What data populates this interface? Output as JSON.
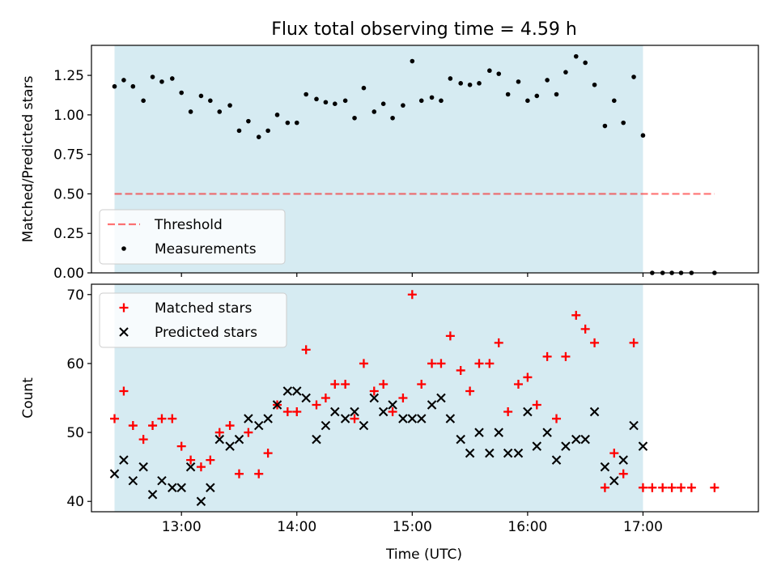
{
  "figure": {
    "title": "Flux total observing time = 4.59 h",
    "xlabel": "Time (UTC)",
    "xticks": [
      {
        "t": 13.0,
        "label": "13:00"
      },
      {
        "t": 14.0,
        "label": "14:00"
      },
      {
        "t": 15.0,
        "label": "15:00"
      },
      {
        "t": 16.0,
        "label": "16:00"
      },
      {
        "t": 17.0,
        "label": "17:00"
      }
    ],
    "colors": {
      "shade": "#add8e6",
      "threshold": "#ff0000",
      "measurements": "#000000",
      "matched": "#ff0000",
      "predicted": "#000000"
    }
  },
  "chart_data": [
    {
      "type": "scatter",
      "ylabel": "Matched/Predicted stars",
      "xlim": [
        12.22,
        18.0
      ],
      "ylim": [
        0,
        1.44
      ],
      "yticks": [
        "0.00",
        "0.25",
        "0.50",
        "0.75",
        "1.00",
        "1.25"
      ],
      "shaded_span": [
        12.42,
        17.0
      ],
      "threshold": {
        "name": "Threshold",
        "value": 0.5,
        "x_range": [
          12.42,
          17.62
        ]
      },
      "legend": [
        "Threshold",
        "Measurements"
      ],
      "legend_position": "lower left",
      "series": [
        {
          "name": "Measurements",
          "x": [
            12.42,
            12.5,
            12.58,
            12.67,
            12.75,
            12.83,
            12.92,
            13.0,
            13.08,
            13.17,
            13.25,
            13.33,
            13.42,
            13.5,
            13.58,
            13.67,
            13.75,
            13.83,
            13.92,
            14.0,
            14.08,
            14.17,
            14.25,
            14.33,
            14.42,
            14.5,
            14.58,
            14.67,
            14.75,
            14.83,
            14.92,
            15.0,
            15.08,
            15.17,
            15.25,
            15.33,
            15.42,
            15.5,
            15.58,
            15.67,
            15.75,
            15.83,
            15.92,
            16.0,
            16.08,
            16.17,
            16.25,
            16.33,
            16.42,
            16.5,
            16.58,
            16.67,
            16.75,
            16.83,
            16.92,
            17.0,
            17.08,
            17.17,
            17.25,
            17.33,
            17.42,
            17.62
          ],
          "y": [
            1.18,
            1.22,
            1.18,
            1.09,
            1.24,
            1.21,
            1.23,
            1.14,
            1.02,
            1.12,
            1.09,
            1.02,
            1.06,
            0.9,
            0.96,
            0.86,
            0.9,
            1.0,
            0.95,
            0.95,
            1.13,
            1.1,
            1.08,
            1.07,
            1.09,
            0.98,
            1.17,
            1.02,
            1.07,
            0.98,
            1.06,
            1.34,
            1.09,
            1.11,
            1.09,
            1.23,
            1.2,
            1.19,
            1.2,
            1.28,
            1.26,
            1.13,
            1.21,
            1.09,
            1.12,
            1.22,
            1.13,
            1.27,
            1.37,
            1.33,
            1.19,
            0.93,
            1.09,
            0.95,
            1.24,
            0.87,
            0.0,
            0.0,
            0.0,
            0.0,
            0.0,
            0.0
          ]
        }
      ]
    },
    {
      "type": "scatter",
      "ylabel": "Count",
      "xlim": [
        12.22,
        18.0
      ],
      "ylim": [
        38.5,
        71.5
      ],
      "yticks": [
        "40",
        "50",
        "60",
        "70"
      ],
      "shaded_span": [
        12.42,
        17.0
      ],
      "legend": [
        "Matched stars",
        "Predicted stars"
      ],
      "legend_position": "upper left",
      "series": [
        {
          "name": "Matched stars",
          "marker": "+",
          "x": [
            12.42,
            12.5,
            12.58,
            12.67,
            12.75,
            12.83,
            12.92,
            13.0,
            13.08,
            13.17,
            13.25,
            13.33,
            13.42,
            13.5,
            13.58,
            13.67,
            13.75,
            13.83,
            13.92,
            14.0,
            14.08,
            14.17,
            14.25,
            14.33,
            14.42,
            14.5,
            14.58,
            14.67,
            14.75,
            14.83,
            14.92,
            15.0,
            15.08,
            15.17,
            15.25,
            15.33,
            15.42,
            15.5,
            15.58,
            15.67,
            15.75,
            15.83,
            15.92,
            16.0,
            16.08,
            16.17,
            16.25,
            16.33,
            16.42,
            16.5,
            16.58,
            16.67,
            16.75,
            16.83,
            16.92,
            17.0,
            17.08,
            17.17,
            17.25,
            17.33,
            17.42,
            17.62
          ],
          "y": [
            52,
            56,
            51,
            49,
            51,
            52,
            52,
            48,
            46,
            45,
            46,
            50,
            51,
            44,
            50,
            44,
            47,
            54,
            53,
            53,
            62,
            54,
            55,
            57,
            57,
            52,
            60,
            56,
            57,
            53,
            55,
            70,
            57,
            60,
            60,
            64,
            59,
            56,
            60,
            60,
            63,
            53,
            57,
            58,
            54,
            61,
            52,
            61,
            67,
            65,
            63,
            42,
            47,
            44,
            63,
            42,
            42,
            42,
            42,
            42,
            42,
            42
          ]
        },
        {
          "name": "Predicted stars",
          "marker": "x",
          "x": [
            12.42,
            12.5,
            12.58,
            12.67,
            12.75,
            12.83,
            12.92,
            13.0,
            13.08,
            13.17,
            13.25,
            13.33,
            13.42,
            13.5,
            13.58,
            13.67,
            13.75,
            13.83,
            13.92,
            14.0,
            14.08,
            14.17,
            14.25,
            14.33,
            14.42,
            14.5,
            14.58,
            14.67,
            14.75,
            14.83,
            14.92,
            15.0,
            15.08,
            15.17,
            15.25,
            15.33,
            15.42,
            15.5,
            15.58,
            15.67,
            15.75,
            15.83,
            15.92,
            16.0,
            16.08,
            16.17,
            16.25,
            16.33,
            16.42,
            16.5,
            16.58,
            16.67,
            16.75,
            16.83,
            16.92,
            17.0
          ],
          "y": [
            44,
            46,
            43,
            45,
            41,
            43,
            42,
            42,
            45,
            40,
            42,
            49,
            48,
            49,
            52,
            51,
            52,
            54,
            56,
            56,
            55,
            49,
            51,
            53,
            52,
            53,
            51,
            55,
            53,
            54,
            52,
            52,
            52,
            54,
            55,
            52,
            49,
            47,
            50,
            47,
            50,
            47,
            47,
            53,
            48,
            50,
            46,
            48,
            49,
            49,
            53,
            45,
            43,
            46,
            51,
            48
          ]
        }
      ]
    }
  ]
}
